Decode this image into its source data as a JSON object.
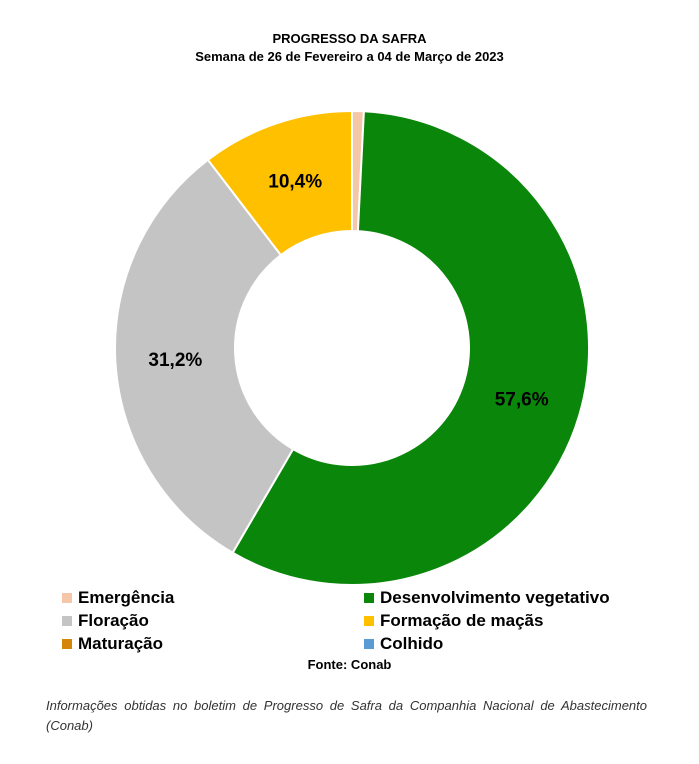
{
  "title": "PROGRESSO DA SAFRA",
  "subtitle": "Semana de 26 de Fevereiro a 04 de Março de 2023",
  "source": "Fonte: Conab",
  "note": "Informações obtidas no boletim de Progresso de Safra da Companhia Nacional de Abastecimento (Conab)",
  "chart_data": {
    "type": "pie",
    "title": "PROGRESSO DA SAFRA",
    "subtitle": "Semana de 26 de Fevereiro a 04 de Março de 2023",
    "legend_position": "bottom",
    "donut": true,
    "slices": [
      {
        "name": "Emergência",
        "value": 0.8,
        "label": "",
        "color": "#f4c7a8"
      },
      {
        "name": "Desenvolvimento vegetativo",
        "value": 57.6,
        "label": "57,6%",
        "color": "#0a870a"
      },
      {
        "name": "Floração",
        "value": 31.2,
        "label": "31,2%",
        "color": "#c4c4c4"
      },
      {
        "name": "Formação de maçãs",
        "value": 10.4,
        "label": "10,4%",
        "color": "#ffc000"
      },
      {
        "name": "Maturação",
        "value": 0,
        "label": "",
        "color": "#d4860b"
      },
      {
        "name": "Colhido",
        "value": 0,
        "label": "",
        "color": "#5b9bd5"
      }
    ]
  },
  "legend": {
    "items": [
      {
        "label": "Emergência",
        "color": "#f4c7a8"
      },
      {
        "label": "Desenvolvimento vegetativo",
        "color": "#0a870a"
      },
      {
        "label": "Floração",
        "color": "#c4c4c4"
      },
      {
        "label": "Formação de maçãs",
        "color": "#ffc000"
      },
      {
        "label": "Maturação",
        "color": "#d4860b"
      },
      {
        "label": "Colhido",
        "color": "#5b9bd5"
      }
    ]
  }
}
